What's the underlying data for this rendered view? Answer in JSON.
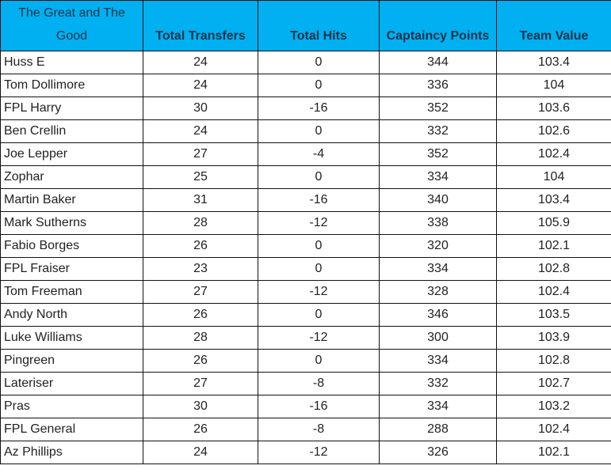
{
  "table": {
    "headers": [
      "The Great and The Good",
      "Total Transfers",
      "Total Hits",
      "Captaincy Points",
      "Team Value"
    ],
    "header_color": "#00b0f0",
    "rows": [
      [
        "Huss E",
        "24",
        "0",
        "344",
        "103.4"
      ],
      [
        "Tom Dollimore",
        "24",
        "0",
        "336",
        "104"
      ],
      [
        "FPL Harry",
        "30",
        "-16",
        "352",
        "103.6"
      ],
      [
        "Ben Crellin",
        "24",
        "0",
        "332",
        "102.6"
      ],
      [
        "Joe Lepper",
        "27",
        "-4",
        "352",
        "102.4"
      ],
      [
        "Zophar",
        "25",
        "0",
        "334",
        "104"
      ],
      [
        "Martin Baker",
        "31",
        "-16",
        "340",
        "103.4"
      ],
      [
        "Mark Sutherns",
        "28",
        "-12",
        "338",
        "105.9"
      ],
      [
        "Fabio Borges",
        "26",
        "0",
        "320",
        "102.1"
      ],
      [
        "FPL Fraiser",
        "23",
        "0",
        "334",
        "102.8"
      ],
      [
        "Tom Freeman",
        "27",
        "-12",
        "328",
        "102.4"
      ],
      [
        "Andy North",
        "26",
        "0",
        "346",
        "103.5"
      ],
      [
        "Luke Williams",
        "28",
        "-12",
        "300",
        "103.9"
      ],
      [
        "Pingreen",
        "26",
        "0",
        "334",
        "102.8"
      ],
      [
        "Lateriser",
        "27",
        "-8",
        "332",
        "102.7"
      ],
      [
        "Pras",
        "30",
        "-16",
        "334",
        "103.2"
      ],
      [
        "FPL General",
        "26",
        "-8",
        "288",
        "102.4"
      ],
      [
        "Az Phillips",
        "24",
        "-12",
        "326",
        "102.1"
      ]
    ]
  }
}
